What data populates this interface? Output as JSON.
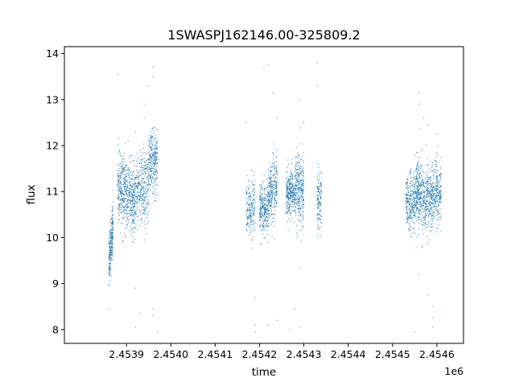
{
  "chart_data": {
    "type": "scatter",
    "title": "1SWASPJ162146.00-325809.2",
    "xlabel": "time",
    "ylabel": "flux",
    "x_offset_label": "1e6",
    "xlim": [
      2.45376,
      2.45466
    ],
    "ylim": [
      7.7,
      14.15
    ],
    "x_ticks": [
      2.4539,
      2.454,
      2.4541,
      2.4542,
      2.4543,
      2.4544,
      2.4545,
      2.4546
    ],
    "x_tick_labels": [
      "2.4539",
      "2.4540",
      "2.4541",
      "2.4542",
      "2.4543",
      "2.4544",
      "2.4545",
      "2.4546"
    ],
    "y_ticks": [
      8,
      9,
      10,
      11,
      12,
      13,
      14
    ],
    "y_tick_labels": [
      "8",
      "9",
      "10",
      "11",
      "12",
      "13",
      "14"
    ],
    "grid": false,
    "legend": "none",
    "point_color": "#1f77b4",
    "series": [
      {
        "clusters": [
          {
            "x_range": [
              2.45386,
              2.45387
            ],
            "y_center": 9.85,
            "y_spread": 0.55,
            "trend": 0.9,
            "count": 260
          },
          {
            "x_range": [
              2.45388,
              2.4539
            ],
            "y_center": 11.0,
            "y_spread": 0.75,
            "trend": 0.0,
            "count": 300
          },
          {
            "x_range": [
              2.4539,
              2.45392
            ],
            "y_center": 10.85,
            "y_spread": 0.75,
            "trend": -0.2,
            "count": 300
          },
          {
            "x_range": [
              2.45392,
              2.45395
            ],
            "y_center": 11.05,
            "y_spread": 0.8,
            "trend": 0.2,
            "count": 320
          },
          {
            "x_range": [
              2.45395,
              2.45397
            ],
            "y_center": 11.65,
            "y_spread": 0.65,
            "trend": 0.0,
            "count": 300
          },
          {
            "x_range": [
              2.45417,
              2.45419
            ],
            "y_center": 10.65,
            "y_spread": 0.6,
            "trend": 0.0,
            "count": 200
          },
          {
            "x_range": [
              2.4542,
              2.45422
            ],
            "y_center": 10.6,
            "y_spread": 0.6,
            "trend": 0.0,
            "count": 280
          },
          {
            "x_range": [
              2.45422,
              2.45424
            ],
            "y_center": 11.0,
            "y_spread": 0.65,
            "trend": 0.2,
            "count": 280
          },
          {
            "x_range": [
              2.45426,
              2.45428
            ],
            "y_center": 11.0,
            "y_spread": 0.5,
            "trend": 0.0,
            "count": 300
          },
          {
            "x_range": [
              2.45428,
              2.4543
            ],
            "y_center": 11.05,
            "y_spread": 0.75,
            "trend": 0.0,
            "count": 320
          },
          {
            "x_range": [
              2.45433,
              2.45434
            ],
            "y_center": 10.8,
            "y_spread": 0.7,
            "trend": 0.0,
            "count": 140
          },
          {
            "x_range": [
              2.45453,
              2.45455
            ],
            "y_center": 10.75,
            "y_spread": 0.6,
            "trend": 0.0,
            "count": 260
          },
          {
            "x_range": [
              2.45455,
              2.45457
            ],
            "y_center": 10.95,
            "y_spread": 0.75,
            "trend": 0.0,
            "count": 320
          },
          {
            "x_range": [
              2.45457,
              2.45459
            ],
            "y_center": 10.85,
            "y_spread": 0.7,
            "trend": 0.0,
            "count": 280
          },
          {
            "x_range": [
              2.45459,
              2.45461
            ],
            "y_center": 10.95,
            "y_spread": 0.7,
            "trend": 0.0,
            "count": 260
          }
        ],
        "outliers": [
          [
            2.45388,
            13.55
          ],
          [
            2.45395,
            13.3
          ],
          [
            2.45396,
            13.7
          ],
          [
            2.45396,
            13.5
          ],
          [
            2.45394,
            12.9
          ],
          [
            2.45392,
            8.05
          ],
          [
            2.45392,
            8.9
          ],
          [
            2.45393,
            8.35
          ],
          [
            2.45396,
            8.45
          ],
          [
            2.45396,
            8.3
          ],
          [
            2.45397,
            7.95
          ],
          [
            2.45392,
            12.3
          ],
          [
            2.45394,
            12.6
          ],
          [
            2.45417,
            12.5
          ],
          [
            2.45421,
            13.7
          ],
          [
            2.45422,
            13.75
          ],
          [
            2.45423,
            13.15
          ],
          [
            2.45424,
            12.6
          ],
          [
            2.45429,
            13.0
          ],
          [
            2.4543,
            12.5
          ],
          [
            2.45433,
            13.8
          ],
          [
            2.45433,
            13.3
          ],
          [
            2.45419,
            8.1
          ],
          [
            2.45419,
            7.95
          ],
          [
            2.45419,
            8.7
          ],
          [
            2.45422,
            8.1
          ],
          [
            2.45424,
            8.2
          ],
          [
            2.45427,
            8.0
          ],
          [
            2.45429,
            8.05
          ],
          [
            2.45428,
            8.45
          ],
          [
            2.45429,
            9.35
          ],
          [
            2.45456,
            13.15
          ],
          [
            2.45456,
            12.9
          ],
          [
            2.45458,
            12.45
          ],
          [
            2.4546,
            12.25
          ],
          [
            2.45457,
            12.6
          ],
          [
            2.45455,
            7.95
          ],
          [
            2.45459,
            8.05
          ],
          [
            2.45459,
            8.5
          ],
          [
            2.45459,
            8.25
          ],
          [
            2.45458,
            8.75
          ],
          [
            2.45456,
            9.2
          ]
        ]
      }
    ]
  }
}
